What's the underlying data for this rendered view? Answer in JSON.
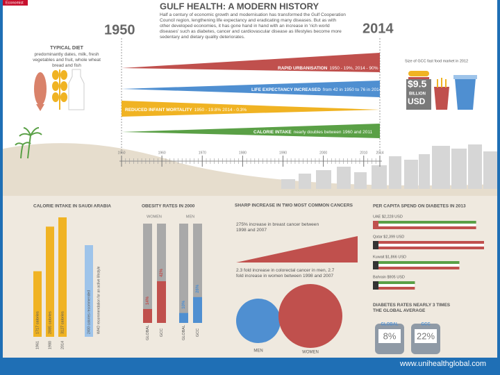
{
  "header": {
    "logo": "Economist",
    "title": "GULF HEALTH: A MODERN HISTORY",
    "year_start": "1950",
    "year_end": "2014",
    "intro": "Half a century of economic growth and modernisation has transformed the Gulf Cooperation Council region, lengthening life expectancy and eradicating many diseases. But as with other developed economies, it has gone hand in hand with an increase in 'rich world diseases' such as diabetes, cancer and cardiovascular disease as lifestyles become more sedentary and dietary quality deteriorates."
  },
  "diet": {
    "title": "TYPICAL DIET",
    "text": "predominantly dates, milk, fresh vegetables and fruit, whole wheat bread and fish"
  },
  "trends": [
    {
      "label": "RAPID URBANISATION",
      "detail": "1950 - 19%, 2014 - 90%"
    },
    {
      "label": "LIFE EXPECTANCY INCREASED",
      "detail": "from 42 in 1950 to 76 in 2014"
    },
    {
      "label": "REDUCED INFANT MORTALITY",
      "detail": "1950 - 19.8% 2014 - 0.3%"
    },
    {
      "label": "CALORIE INTAKE",
      "detail": "nearly doubles between 1960 and 2011"
    }
  ],
  "fast_food": {
    "caption": "Size of GCC fast food market in 2012",
    "value": "$9.5",
    "unit": "BILLION",
    "currency": "USD"
  },
  "timeline": [
    1950,
    1960,
    1970,
    1980,
    1990,
    2000,
    2010,
    2014
  ],
  "calories": {
    "title": "CALORIE INTAKE IN SAUDI ARABIA",
    "years": [
      1961,
      1980,
      2014
    ],
    "values": [
      1717,
      2885,
      3127
    ],
    "value_labels": [
      "1717 calories",
      "2885 calories",
      "3127 calories"
    ],
    "recommendation": {
      "value": 2400,
      "label": "2400 calories recommended",
      "note": "WHO recommendation for an active lifestyle"
    }
  },
  "obesity": {
    "title": "OBESITY RATES IN 2000",
    "groups": [
      {
        "name": "WOMEN",
        "categories": [
          "GLOBAL",
          "GCC"
        ],
        "values": [
          14,
          42
        ],
        "value_labels": [
          "14%",
          "42%"
        ]
      },
      {
        "name": "MEN",
        "categories": [
          "GLOBAL",
          "GCC"
        ],
        "values": [
          10,
          26
        ],
        "value_labels": [
          "10%",
          "26%"
        ]
      }
    ]
  },
  "cancer": {
    "title": "SHARP INCREASE IN TWO MOST COMMON CANCERS",
    "breast": "275% increase in breast cancer between 1998 and 2007",
    "colorectal": "2.3 fold increase in colorectal cancer in men, 2.7 fold increase in women between 1998 and 2007",
    "men": "MEN",
    "women": "WOMEN"
  },
  "diabetes_spend": {
    "title": "PER CAPITA SPEND ON DIABETES IN 2013",
    "countries": [
      {
        "label": "UAE $2,228 USD",
        "value": 2228
      },
      {
        "label": "Qatar $2,399 USD",
        "value": 2399
      },
      {
        "label": "Kuwait $1,866 USD",
        "value": 1866
      },
      {
        "label": "Bahrain $905 USD",
        "value": 905
      }
    ]
  },
  "diabetes_rates": {
    "title": "DIABETES RATES NEARLY 3 TIMES THE GLOBAL AVERAGE",
    "global_label": "GLOBAL",
    "global_value": "8%",
    "gcc_label": "GCC",
    "gcc_value": "22%"
  },
  "footer": "www.unihealthglobal.com"
}
